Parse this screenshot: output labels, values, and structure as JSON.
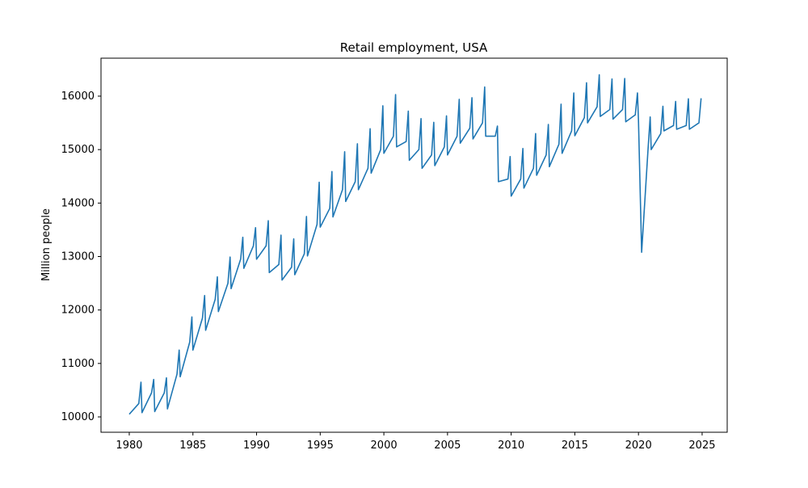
{
  "chart_data": {
    "type": "line",
    "title": "Retail employment, USA",
    "y_label": "Million people",
    "xlim": [
      1977.78,
      2026.97
    ],
    "ylim": [
      9713,
      16710
    ],
    "xticks": [
      1980,
      1985,
      1990,
      1995,
      2000,
      2005,
      2010,
      2015,
      2020,
      2025
    ],
    "yticks": [
      10000,
      11000,
      12000,
      13000,
      14000,
      15000,
      16000
    ],
    "series": [
      {
        "color": "#1f77b4",
        "x": [
          1980,
          1980.75,
          1980.92,
          1981,
          1981.75,
          1981.92,
          1982,
          1982.75,
          1982.92,
          1983,
          1983.75,
          1983.92,
          1984,
          1984.75,
          1984.92,
          1985,
          1985.75,
          1985.92,
          1986,
          1986.75,
          1986.92,
          1987,
          1987.75,
          1987.92,
          1988,
          1988.75,
          1988.92,
          1989,
          1989.75,
          1989.92,
          1990,
          1990.75,
          1990.92,
          1991,
          1991.75,
          1991.92,
          1992,
          1992.75,
          1992.92,
          1993,
          1993.75,
          1993.92,
          1994,
          1994.75,
          1994.92,
          1995,
          1995.75,
          1995.92,
          1996,
          1996.75,
          1996.92,
          1997,
          1997.75,
          1997.92,
          1998,
          1998.75,
          1998.92,
          1999,
          1999.75,
          1999.92,
          2000,
          2000.75,
          2000.92,
          2001,
          2001.75,
          2001.92,
          2002,
          2002.75,
          2002.92,
          2003,
          2003.75,
          2003.92,
          2004,
          2004.75,
          2004.92,
          2005,
          2005.75,
          2005.92,
          2006,
          2006.75,
          2006.92,
          2007,
          2007.75,
          2007.92,
          2008,
          2008.75,
          2008.92,
          2009,
          2009.75,
          2009.92,
          2010,
          2010.75,
          2010.92,
          2011,
          2011.75,
          2011.92,
          2012,
          2012.75,
          2012.92,
          2013,
          2013.75,
          2013.92,
          2014,
          2014.75,
          2014.92,
          2015,
          2015.75,
          2015.92,
          2016,
          2016.75,
          2016.92,
          2017,
          2017.75,
          2017.92,
          2018,
          2018.75,
          2018.92,
          2019,
          2019.75,
          2019.92,
          2020,
          2020.25,
          2020.75,
          2020.92,
          2021,
          2021.75,
          2021.92,
          2022,
          2022.75,
          2022.92,
          2023,
          2023.75,
          2023.92,
          2024,
          2024.75,
          2024.92
        ],
        "values": [
          10050,
          10250,
          10650,
          10080,
          10450,
          10700,
          10100,
          10450,
          10730,
          10150,
          10800,
          11250,
          10750,
          11400,
          11870,
          11250,
          11850,
          12270,
          11620,
          12200,
          12620,
          11970,
          12500,
          12990,
          12400,
          12950,
          13360,
          12780,
          13200,
          13540,
          12950,
          13200,
          13670,
          12700,
          12850,
          13400,
          12560,
          12800,
          13330,
          12660,
          13050,
          13750,
          13010,
          13600,
          14390,
          13550,
          13900,
          14590,
          13740,
          14250,
          14960,
          14030,
          14400,
          15110,
          14250,
          14650,
          15390,
          14560,
          15000,
          15820,
          14930,
          15250,
          16030,
          15050,
          15150,
          15720,
          14800,
          15000,
          15580,
          14650,
          14900,
          15510,
          14700,
          15050,
          15630,
          14900,
          15250,
          15940,
          15120,
          15400,
          15970,
          15200,
          15500,
          16170,
          15250,
          15250,
          15440,
          14400,
          14450,
          14870,
          14130,
          14450,
          15020,
          14280,
          14650,
          15300,
          14520,
          14900,
          15470,
          14680,
          15100,
          15850,
          14930,
          15350,
          16060,
          15260,
          15600,
          16250,
          15500,
          15800,
          16400,
          15620,
          15750,
          16320,
          15570,
          15750,
          16330,
          15520,
          15650,
          16060,
          15550,
          13080,
          15000,
          15610,
          15000,
          15300,
          15810,
          15350,
          15450,
          15900,
          15380,
          15450,
          15950,
          15380,
          15500,
          15960
        ]
      }
    ]
  }
}
